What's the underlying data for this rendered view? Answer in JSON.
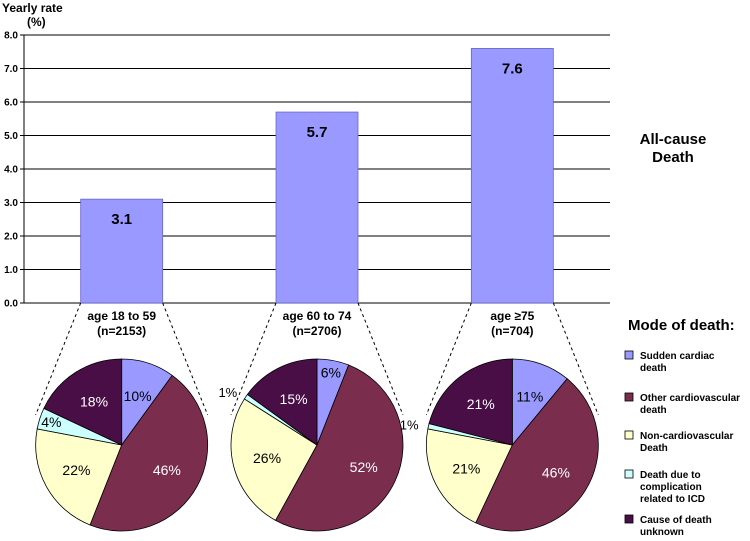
{
  "chart_data": [
    {
      "type": "bar",
      "title": "All-cause Death",
      "title_lines": [
        "All-cause",
        "Death"
      ],
      "ylabel": "Yearly rate",
      "yunit": "(%)",
      "ylim": [
        0,
        8.0
      ],
      "yticks": [
        "0.0",
        "1.0",
        "2.0",
        "3.0",
        "4.0",
        "5.0",
        "6.0",
        "7.0",
        "8.0"
      ],
      "grid": true,
      "categories": [
        "age 18 to 59",
        "age 60 to 74",
        "age ≥75"
      ],
      "category_n": [
        "(n=2153)",
        "(n=2706)",
        "(n=704)"
      ],
      "values": [
        3.1,
        5.7,
        7.6
      ],
      "value_labels": [
        "3.1",
        "5.7",
        "7.6"
      ],
      "bar_color": "#9999FF"
    },
    {
      "type": "pie",
      "title": "Mode of death",
      "legend_title": "Mode of death:",
      "legend": [
        {
          "lines": [
            "Sudden cardiac",
            "death"
          ],
          "color": "#9999FF"
        },
        {
          "lines": [
            "Other cardiovascular",
            "death"
          ],
          "color": "#7B2D4E"
        },
        {
          "lines": [
            "Non-cardiovascular",
            "Death"
          ],
          "color": "#FFFFCC"
        },
        {
          "lines": [
            "Death due to",
            "complication",
            "related to ICD"
          ],
          "color": "#CCFFFF"
        },
        {
          "lines": [
            "Cause of death",
            "unknown"
          ],
          "color": "#4A0E47"
        }
      ],
      "pies": [
        {
          "category": "age 18 to 59",
          "values": [
            10,
            46,
            22,
            4,
            18
          ],
          "labels": [
            "10%",
            "46%",
            "22%",
            "4%",
            "18%"
          ]
        },
        {
          "category": "age 60 to 74",
          "values": [
            6,
            52,
            26,
            1,
            15
          ],
          "labels": [
            "6%",
            "52%",
            "26%",
            "1%",
            "15%"
          ]
        },
        {
          "category": "age ≥75",
          "values": [
            11,
            46,
            21,
            1,
            21
          ],
          "labels": [
            "11%",
            "46%",
            "21%",
            "1%",
            "21%"
          ]
        }
      ]
    }
  ]
}
